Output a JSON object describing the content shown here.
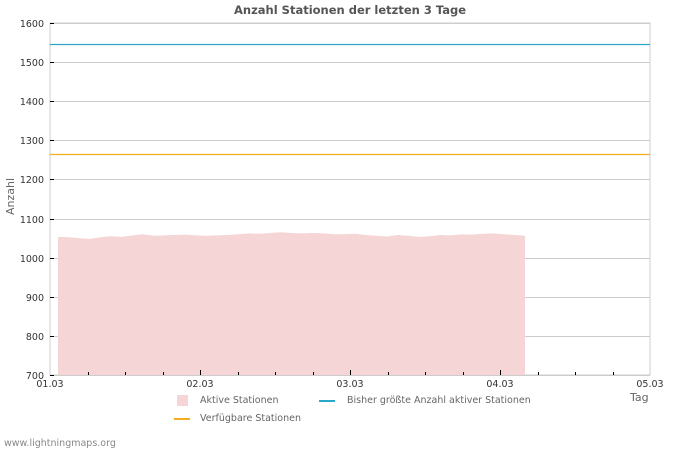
{
  "chart_data": {
    "type": "area",
    "title": "Anzahl Stationen der letzten 3 Tage",
    "xlabel": "Tag",
    "ylabel": "Anzahl",
    "ylim": [
      700,
      1600
    ],
    "yticks": [
      700,
      800,
      900,
      1000,
      1100,
      1200,
      1300,
      1400,
      1500,
      1600
    ],
    "xticks": [
      "01.03",
      "02.03",
      "03.03",
      "04.03",
      "05.03"
    ],
    "grid": true,
    "legend_position": "bottom",
    "series": [
      {
        "name": "Aktive Stationen",
        "type": "area",
        "color": "#f5d5d5",
        "x_start": "01.03 00:00",
        "x_end": "04.03 ~04:00",
        "values": [
          1053,
          1052,
          1050,
          1048,
          1052,
          1055,
          1053,
          1057,
          1060,
          1056,
          1057,
          1058,
          1059,
          1057,
          1056,
          1057,
          1058,
          1060,
          1062,
          1061,
          1063,
          1065,
          1063,
          1062,
          1063,
          1062,
          1060,
          1060,
          1061,
          1058,
          1056,
          1054,
          1058,
          1056,
          1053,
          1055,
          1058,
          1057,
          1060,
          1059,
          1061,
          1062,
          1060,
          1058,
          1056
        ]
      },
      {
        "name": "Bisher größte Anzahl aktiver Stationen",
        "type": "line",
        "color": "#2ba8c8",
        "value": 1546
      },
      {
        "name": "Verfügbare Stationen",
        "type": "line",
        "color": "#f0ad1e",
        "value": 1265
      }
    ]
  },
  "legend": {
    "items": [
      {
        "label": "Aktive Stationen",
        "color": "#f5d5d5"
      },
      {
        "label": "Bisher größte Anzahl aktiver Stationen",
        "color": "#2ba8c8"
      },
      {
        "label": "Verfügbare Stationen",
        "color": "#f0ad1e"
      }
    ]
  },
  "footer": "www.lightningmaps.org"
}
